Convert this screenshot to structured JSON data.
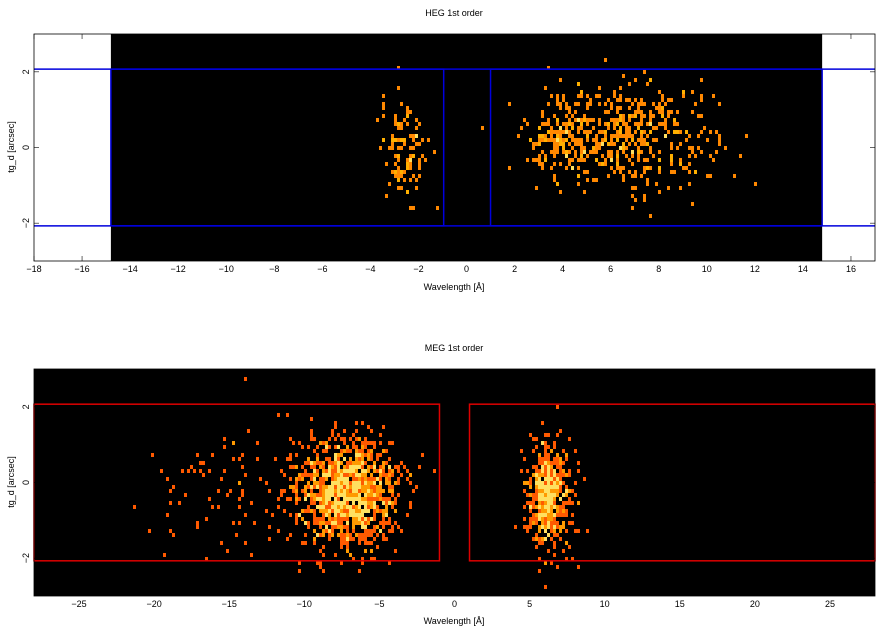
{
  "chart_data": [
    {
      "type": "heatmap",
      "title": "HEG 1st order",
      "xlabel": "Wavelength [Å]",
      "ylabel": "tg_d [arcsec]",
      "xlim": [
        -18,
        17
      ],
      "ylim": [
        -3,
        3
      ],
      "xticks": [
        -18,
        -16,
        -14,
        -12,
        -10,
        -8,
        -6,
        -4,
        -2,
        0,
        2,
        4,
        6,
        8,
        10,
        12,
        14,
        16
      ],
      "yticks": [
        -2,
        0,
        2
      ],
      "detector_range": [
        -14.8,
        14.8
      ],
      "background": "#000000",
      "colormap": [
        "#ff8800",
        "#ffb000",
        "#ffe060"
      ],
      "regions": [
        {
          "x": [
            -14.8,
            -0.95
          ],
          "y": [
            -2.07,
            2.07
          ],
          "color": "#0000dd"
        },
        {
          "x": [
            1.0,
            14.8
          ],
          "y": [
            -2.07,
            2.07
          ],
          "color": "#0000dd"
        }
      ],
      "extraction_lines": {
        "y": [
          -2.07,
          2.07
        ],
        "x": [
          -18,
          17
        ],
        "color": "#0000dd"
      },
      "blobs": [
        {
          "cx": 6.8,
          "cy": 0.3,
          "sx": 3.2,
          "sy": 0.9,
          "n": 430
        },
        {
          "cx": 3.8,
          "cy": 0.3,
          "sx": 1.3,
          "sy": 0.8,
          "n": 130
        },
        {
          "cx": -2.6,
          "cy": 0.0,
          "sx": 0.9,
          "sy": 1.0,
          "n": 110
        }
      ]
    },
    {
      "type": "heatmap",
      "title": "MEG 1st order",
      "xlabel": "Wavelength [Å]",
      "ylabel": "tg_d [arcsec]",
      "xlim": [
        -28,
        28
      ],
      "ylim": [
        -3,
        3
      ],
      "xticks": [
        -25,
        -20,
        -15,
        -10,
        -5,
        0,
        5,
        10,
        15,
        20,
        25
      ],
      "yticks": [
        -2,
        0,
        2
      ],
      "background": "#000000",
      "colormap": [
        "#ff5a00",
        "#ff9a00",
        "#ffe060"
      ],
      "regions": [
        {
          "x": [
            -28,
            -1.0
          ],
          "y": [
            -2.07,
            2.07
          ],
          "color": "#dd0000"
        },
        {
          "x": [
            1.0,
            28
          ],
          "y": [
            -2.07,
            2.07
          ],
          "color": "#dd0000"
        }
      ],
      "blobs": [
        {
          "cx": -7.2,
          "cy": -0.3,
          "sx": 3.2,
          "sy": 0.95,
          "n": 1200
        },
        {
          "cx": 6.3,
          "cy": -0.3,
          "sx": 1.3,
          "sy": 0.95,
          "n": 520
        },
        {
          "cx": -14.0,
          "cy": -0.2,
          "sx": 6.0,
          "sy": 1.2,
          "n": 90
        }
      ]
    }
  ]
}
